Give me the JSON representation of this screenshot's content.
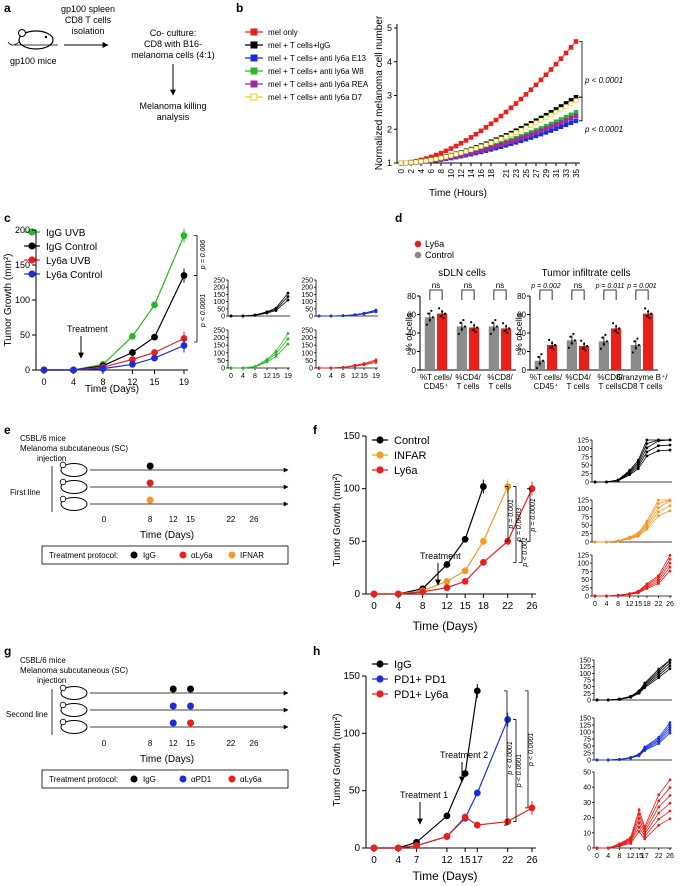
{
  "colors": {
    "red": "#e8201c",
    "black": "#000000",
    "blue": "#1a2fd6",
    "green": "#27b827",
    "orange": "#f39a25",
    "purple": "#9c2a9c",
    "yellow": "#e0d015",
    "gray": "#8c8c8c"
  },
  "panel_a": {
    "label": "a",
    "mouse_label": "gp100 mice",
    "arrow1_text_1": "gp100 spleen",
    "arrow1_text_2": "CD8 T cells",
    "arrow1_text_3": "isolation",
    "coculture_1": "Co- culture:",
    "coculture_2": "CD8 with B16-",
    "coculture_3": "melanoma cells (4:1)",
    "result_1": "Melanoma killing",
    "result_2": "analysis"
  },
  "panel_b": {
    "label": "b"
  },
  "panel_c": {
    "label": "c",
    "treatment_label": "Treatment"
  },
  "panel_d": {
    "label": "d"
  },
  "panel_e": {
    "label": "e",
    "header_1": "C5BL/6 mice",
    "header_2": "Melanoma subcutaneous (SC)",
    "header_3": "injection",
    "line_label": "First line",
    "protocol_label": "Treatment protocol:",
    "protocol": [
      "IgG",
      "αLy6a",
      "IFNAR"
    ],
    "axis_ticks": [
      "0",
      "8",
      "12",
      "15",
      "22",
      "26"
    ],
    "xlabel": "Time (Days)"
  },
  "panel_f": {
    "label": "f",
    "treatment_label": "Treatment"
  },
  "panel_g": {
    "label": "g",
    "header_1": "C5BL/6 mice",
    "header_2": "Melanoma subcutaneous (SC)",
    "header_3": "injection",
    "line_label": "Second line",
    "protocol_label": "Treatment protocol:",
    "protocol": [
      "IgG",
      "αPD1",
      "αLy6a"
    ],
    "axis_ticks": [
      "0",
      "8",
      "12",
      "15",
      "22",
      "26"
    ],
    "xlabel": "Time (Days)"
  },
  "panel_h": {
    "label": "h",
    "treatment1_label": "Treatment 1",
    "treatment2_label": "Treatment 2"
  },
  "chart_data": [
    {
      "id": "b",
      "type": "line",
      "ylabel": "Normalized melanoma cell number",
      "xlabel": "Time (Hours)",
      "xlim": [
        0,
        35
      ],
      "ylim": [
        1,
        5
      ],
      "x": [
        0,
        1,
        2,
        3,
        4,
        5,
        6,
        7,
        8,
        9,
        10,
        11,
        12,
        13,
        14,
        15,
        16,
        17,
        18,
        19,
        20,
        21,
        22,
        23,
        24,
        25,
        26,
        27,
        28,
        29,
        30,
        31,
        32,
        33,
        34,
        35
      ],
      "yticks": [
        "1",
        "2",
        "3",
        "4",
        "5"
      ],
      "xticks": [
        "0",
        "2",
        "4",
        "6",
        "8",
        "10",
        "12",
        "14",
        "16",
        "18",
        "21",
        "23",
        "25",
        "27",
        "29",
        "31",
        "33",
        "35"
      ],
      "series": [
        {
          "name": "mel only",
          "color": "red",
          "end": 4.6
        },
        {
          "name": "mel + T cells+IgG",
          "color": "black",
          "end": 2.95
        },
        {
          "name": "mel + T cells+ anti ly6a E13",
          "color": "blue",
          "end": 2.25
        },
        {
          "name": "mel + T cells+ anti ly6a W8",
          "color": "green",
          "end": 2.5
        },
        {
          "name": "mel + T cells+ anti ly6a REA",
          "color": "purple",
          "end": 2.4
        },
        {
          "name": "mel + T cells+ anti ly6a D7",
          "color": "yellow",
          "end": 2.85
        }
      ],
      "pvalues": [
        "p < 0.0001",
        "p < 0.0001"
      ]
    },
    {
      "id": "c",
      "type": "line",
      "ylabel": "Tumor Growth (mm²)",
      "xlabel": "Time (Days)",
      "x": [
        0,
        4,
        8,
        12,
        15,
        19
      ],
      "xticks": [
        "0",
        "4",
        "8",
        "12",
        "15",
        "19"
      ],
      "ylim": [
        0,
        200
      ],
      "yticks": [
        "0",
        "50",
        "100",
        "150",
        "200"
      ],
      "series": [
        {
          "name": "IgG UVB",
          "color": "green",
          "values": [
            0,
            0,
            8,
            48,
            93,
            192
          ]
        },
        {
          "name": "IgG Control",
          "color": "black",
          "values": [
            0,
            0,
            6,
            25,
            47,
            135
          ]
        },
        {
          "name": "Ly6a UVB",
          "color": "red",
          "values": [
            0,
            0,
            4,
            15,
            25,
            45
          ]
        },
        {
          "name": "Ly6a Control",
          "color": "blue",
          "values": [
            0,
            0,
            2,
            8,
            17,
            35
          ]
        }
      ],
      "pvalues": [
        "p = 0.006",
        "p < 0.0001"
      ],
      "small_multiples": {
        "xticks": [
          "0",
          "4",
          "8",
          "12",
          "15",
          "19"
        ],
        "yticks": [
          "0",
          "50",
          "100",
          "150",
          "200",
          "250"
        ]
      }
    },
    {
      "id": "d",
      "type": "bar",
      "legend": [
        "Ly6a",
        "Control"
      ],
      "ylabel": "% of cells",
      "subplots": [
        {
          "title": "sDLN cells",
          "yticks": [
            "0",
            "20",
            "40",
            "60",
            "80"
          ],
          "ymax": 80,
          "categories": [
            "%T cells/ CD45⁺",
            "%CD4/ T cells",
            "%CD8/ T cells"
          ],
          "control": [
            57,
            47,
            47
          ],
          "ly6a": [
            61,
            46,
            45
          ],
          "pvalues": [
            "ns",
            "ns",
            "ns"
          ]
        },
        {
          "title": "Tumor infiltrate cells",
          "yticks": [
            "0",
            "20",
            "40",
            "60",
            "80"
          ],
          "ymax": 80,
          "categories": [
            "%T cells/ CD45⁺",
            "%CD4/ T cells",
            "%CD8/ T cells",
            "Granzyme B⁺/ CD8 T cells"
          ],
          "control": [
            10,
            32,
            31,
            27
          ],
          "ly6a": [
            27,
            26,
            45,
            61
          ],
          "pvalues": [
            "p = 0.002",
            "ns",
            "p = 0.011",
            "p = 0.001"
          ]
        }
      ]
    },
    {
      "id": "f",
      "type": "line",
      "ylabel": "Tumor Growth (mm²)",
      "xlabel": "Time (Days)",
      "x": [
        0,
        4,
        8,
        12,
        15,
        18,
        22,
        26
      ],
      "xticks": [
        "0",
        "4",
        "8",
        "12",
        "15",
        "18",
        "22",
        "26"
      ],
      "ylim": [
        0,
        150
      ],
      "yticks": [
        "0",
        "50",
        "100",
        "150"
      ],
      "series": [
        {
          "name": "Control",
          "color": "black",
          "x": [
            0,
            4,
            8,
            12,
            15,
            18
          ],
          "values": [
            0,
            0,
            5,
            28,
            52,
            102
          ]
        },
        {
          "name": "INFAR",
          "color": "orange",
          "x": [
            0,
            4,
            8,
            12,
            15,
            18,
            22
          ],
          "values": [
            0,
            0,
            3,
            12,
            22,
            50,
            102
          ]
        },
        {
          "name": "Ly6a",
          "color": "red",
          "x": [
            0,
            4,
            8,
            12,
            15,
            18,
            22,
            26
          ],
          "values": [
            0,
            0,
            2,
            6,
            12,
            30,
            50,
            100
          ]
        }
      ],
      "pvalues": [
        "p = 0.001",
        "p = 0.0003",
        "p < 0.001",
        "p = 0.0001"
      ],
      "small_multiples": {
        "xticks": [
          "0",
          "4",
          "8",
          "12",
          "15",
          "18",
          "22",
          "26"
        ],
        "yticks": [
          "0",
          "25",
          "50",
          "75",
          "100",
          "125"
        ]
      }
    },
    {
      "id": "h",
      "type": "line",
      "ylabel": "Tumor Growth (mm²)",
      "xlabel": "Time (Days)",
      "x": [
        0,
        4,
        7,
        12,
        15,
        17,
        22,
        26
      ],
      "xticks": [
        "0",
        "4",
        "7",
        "12",
        "15",
        "17",
        "22",
        "26"
      ],
      "ylim": [
        0,
        150
      ],
      "yticks": [
        "0",
        "50",
        "100",
        "150"
      ],
      "series": [
        {
          "name": "IgG",
          "color": "black",
          "x": [
            0,
            4,
            7,
            12,
            15,
            17
          ],
          "values": [
            0,
            0,
            5,
            28,
            65,
            137
          ]
        },
        {
          "name": "PD1+ PD1",
          "color": "blue",
          "x": [
            0,
            4,
            7,
            12,
            15,
            17,
            22
          ],
          "values": [
            0,
            0,
            2,
            10,
            26,
            48,
            112
          ]
        },
        {
          "name": "PD1+ Ly6a",
          "color": "red",
          "x": [
            0,
            4,
            7,
            12,
            15,
            17,
            22,
            26
          ],
          "values": [
            0,
            0,
            2,
            10,
            27,
            20,
            23,
            35
          ]
        }
      ],
      "pvalues": [
        "p < 0.0001",
        "p < 0.0001",
        "p < 0.0001"
      ],
      "small_multiples": {
        "xticks": [
          "0",
          "4",
          "8",
          "12",
          "15",
          "17",
          "22",
          "26"
        ],
        "yticks_top": [
          "0",
          "25",
          "50",
          "75",
          "100",
          "125",
          "150"
        ],
        "yticks_bottom": [
          "0",
          "10",
          "20",
          "30",
          "40",
          "50"
        ]
      }
    }
  ]
}
